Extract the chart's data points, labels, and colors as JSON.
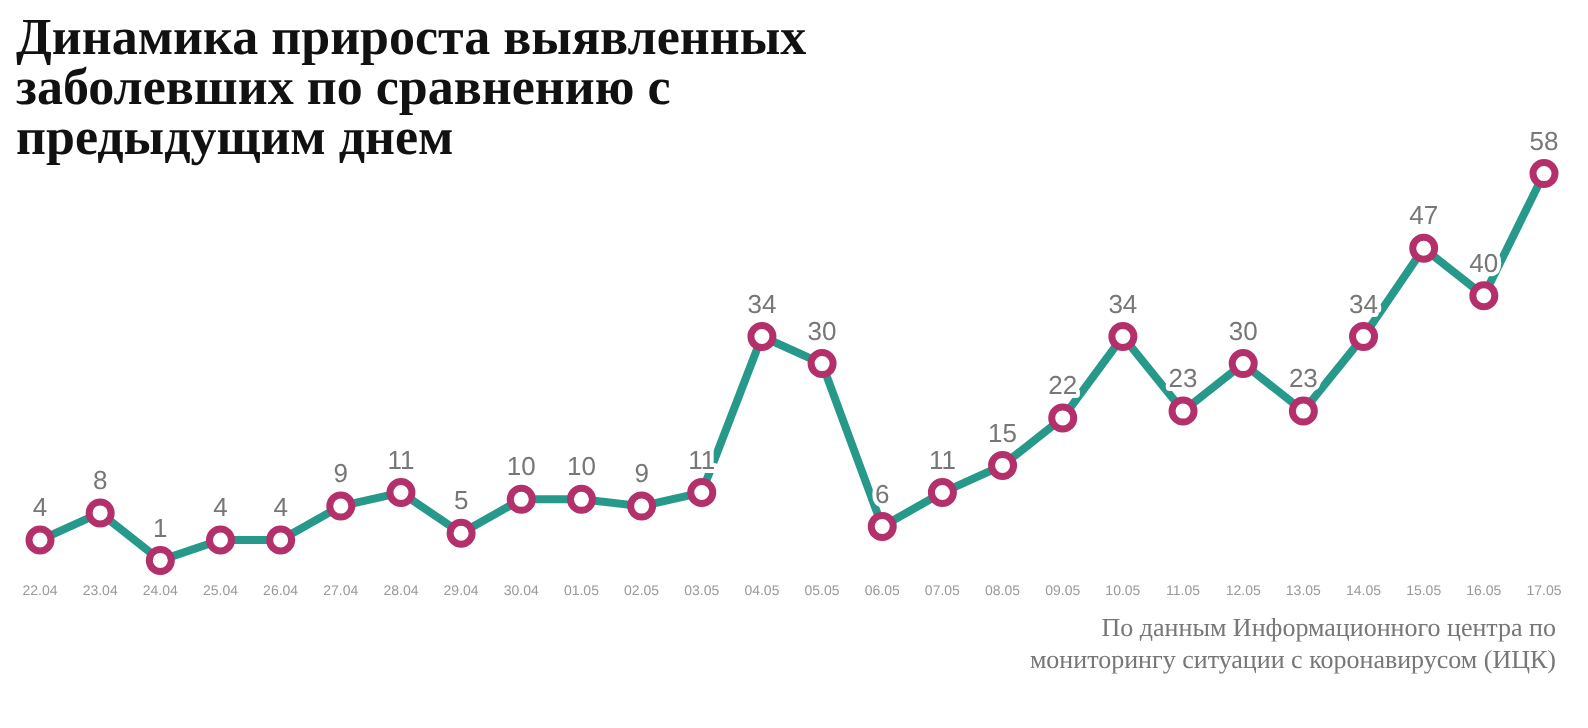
{
  "chart_data": {
    "type": "line",
    "title": "Динамика прироста выявленных заболевших по сравнению с предыдущим днем",
    "categories": [
      "22.04",
      "23.04",
      "24.04",
      "25.04",
      "26.04",
      "27.04",
      "28.04",
      "29.04",
      "30.04",
      "01.05",
      "02.05",
      "03.05",
      "04.05",
      "05.05",
      "06.05",
      "07.05",
      "08.05",
      "09.05",
      "10.05",
      "11.05",
      "12.05",
      "13.05",
      "14.05",
      "15.05",
      "16.05",
      "17.05"
    ],
    "series": [
      {
        "color": "#26998a",
        "colors": [
          "#b3306b",
          "#b3306b",
          "#b3306b",
          "#b3306b",
          "#b3306b",
          "#b3306b",
          "#b3306b",
          "#b3306b",
          "#b3306b",
          "#b3306b",
          "#b3306b",
          "#b3306b",
          "#b3306b",
          "#b3306b",
          "#b3306b",
          "#b3306b",
          "#b3306b",
          "#b3306b",
          "#b3306b",
          "#b3306b",
          "#b3306b",
          "#b3306b",
          "#b3306b",
          "#b3306b",
          "#b3306b",
          "#b3306b"
        ],
        "values": [
          4,
          8,
          1,
          4,
          4,
          9,
          11,
          5,
          10,
          10,
          9,
          11,
          34,
          30,
          6,
          11,
          15,
          22,
          34,
          23,
          30,
          23,
          34,
          47,
          40,
          58
        ]
      }
    ],
    "marker": "circle",
    "data_labels": true,
    "grid": false,
    "legend": false,
    "tick_labels": "x",
    "annotations": [
      "По данным Информационного центра по мониторингу ситуации с коронавирусом (ИЦК)"
    ]
  }
}
